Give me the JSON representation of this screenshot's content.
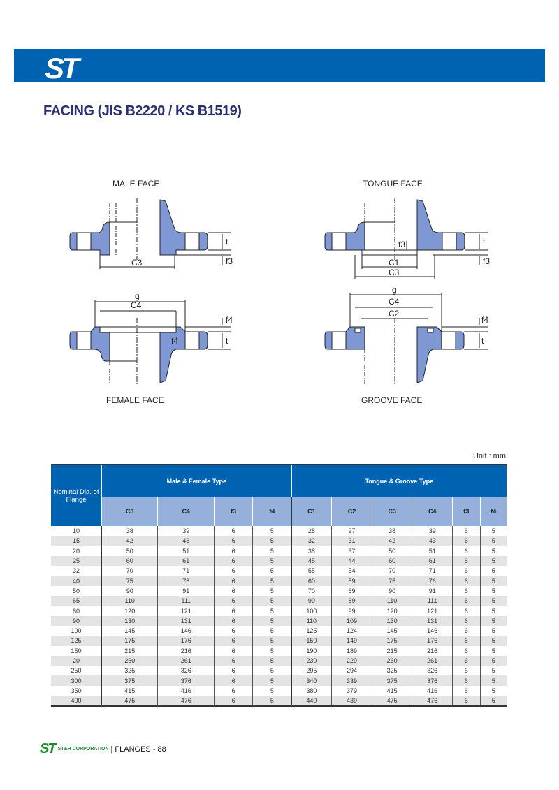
{
  "header": {
    "logo": "ST",
    "brand_color": "#0063b1"
  },
  "title": "FACING (JIS B2220 / KS B1519)",
  "diagrams": {
    "male": {
      "label": "MALE FACE",
      "dims": {
        "t": "t",
        "f3": "f3",
        "c3": "C3"
      }
    },
    "tongue": {
      "label": "TONGUE FACE",
      "dims": {
        "t": "t",
        "f3": "f3",
        "f3_inner": "f3",
        "c1": "C1",
        "c3": "C3"
      }
    },
    "female": {
      "label": "FEMALE FACE",
      "dims": {
        "g": "g",
        "c4": "C4",
        "f4": "f4",
        "f4_inner": "f4",
        "t": "t"
      }
    },
    "groove": {
      "label": "GROOVE FACE",
      "dims": {
        "g": "g",
        "c4": "C4",
        "c2": "C2",
        "f4": "f4",
        "t": "t"
      }
    },
    "fill_color": "#7f97d2"
  },
  "table": {
    "unit": "Unit : mm",
    "nominal_header": "Nominal Dia. of Flange",
    "group1": "Male &  Female Type",
    "group2": "Tongue & Groove Type",
    "columns": [
      "C3",
      "C4",
      "f3",
      "f4",
      "C1",
      "C2",
      "C3",
      "C4",
      "f3",
      "f4"
    ],
    "rows": [
      [
        "10",
        "38",
        "39",
        "6",
        "5",
        "28",
        "27",
        "38",
        "39",
        "6",
        "5"
      ],
      [
        "15",
        "42",
        "43",
        "6",
        "5",
        "32",
        "31",
        "42",
        "43",
        "6",
        "5"
      ],
      [
        "20",
        "50",
        "51",
        "6",
        "5",
        "38",
        "37",
        "50",
        "51",
        "6",
        "5"
      ],
      [
        "25",
        "60",
        "61",
        "6",
        "5",
        "45",
        "44",
        "60",
        "61",
        "6",
        "5"
      ],
      [
        "32",
        "70",
        "71",
        "6",
        "5",
        "55",
        "54",
        "70",
        "71",
        "6",
        "5"
      ],
      [
        "40",
        "75",
        "76",
        "6",
        "5",
        "60",
        "59",
        "75",
        "76",
        "6",
        "5"
      ],
      [
        "50",
        "90",
        "91",
        "6",
        "5",
        "70",
        "69",
        "90",
        "91",
        "6",
        "5"
      ],
      [
        "65",
        "110",
        "111",
        "6",
        "5",
        "90",
        "89",
        "110",
        "111",
        "6",
        "5"
      ],
      [
        "80",
        "120",
        "121",
        "6",
        "5",
        "100",
        "99",
        "120",
        "121",
        "6",
        "5"
      ],
      [
        "90",
        "130",
        "131",
        "6",
        "5",
        "110",
        "109",
        "130",
        "131",
        "6",
        "5"
      ],
      [
        "100",
        "145",
        "146",
        "6",
        "5",
        "125",
        "124",
        "145",
        "146",
        "6",
        "5"
      ],
      [
        "125",
        "175",
        "176",
        "6",
        "5",
        "150",
        "149",
        "175",
        "176",
        "6",
        "5"
      ],
      [
        "150",
        "215",
        "216",
        "6",
        "5",
        "190",
        "189",
        "215",
        "216",
        "6",
        "5"
      ],
      [
        "20",
        "260",
        "261",
        "6",
        "5",
        "230",
        "229",
        "260",
        "261",
        "6",
        "5"
      ],
      [
        "250",
        "325",
        "326",
        "6",
        "5",
        "295",
        "294",
        "325",
        "326",
        "6",
        "5"
      ],
      [
        "300",
        "375",
        "376",
        "6",
        "5",
        "340",
        "339",
        "375",
        "376",
        "6",
        "5"
      ],
      [
        "350",
        "415",
        "416",
        "6",
        "5",
        "380",
        "379",
        "415",
        "416",
        "6",
        "5"
      ],
      [
        "400",
        "475",
        "476",
        "6",
        "5",
        "440",
        "439",
        "475",
        "476",
        "6",
        "5"
      ]
    ]
  },
  "footer": {
    "logo": "ST",
    "company": "ST&H CORPORATION",
    "separator": "|",
    "page": "FLANGES - 88",
    "logo_color": "#1f8a2b"
  }
}
